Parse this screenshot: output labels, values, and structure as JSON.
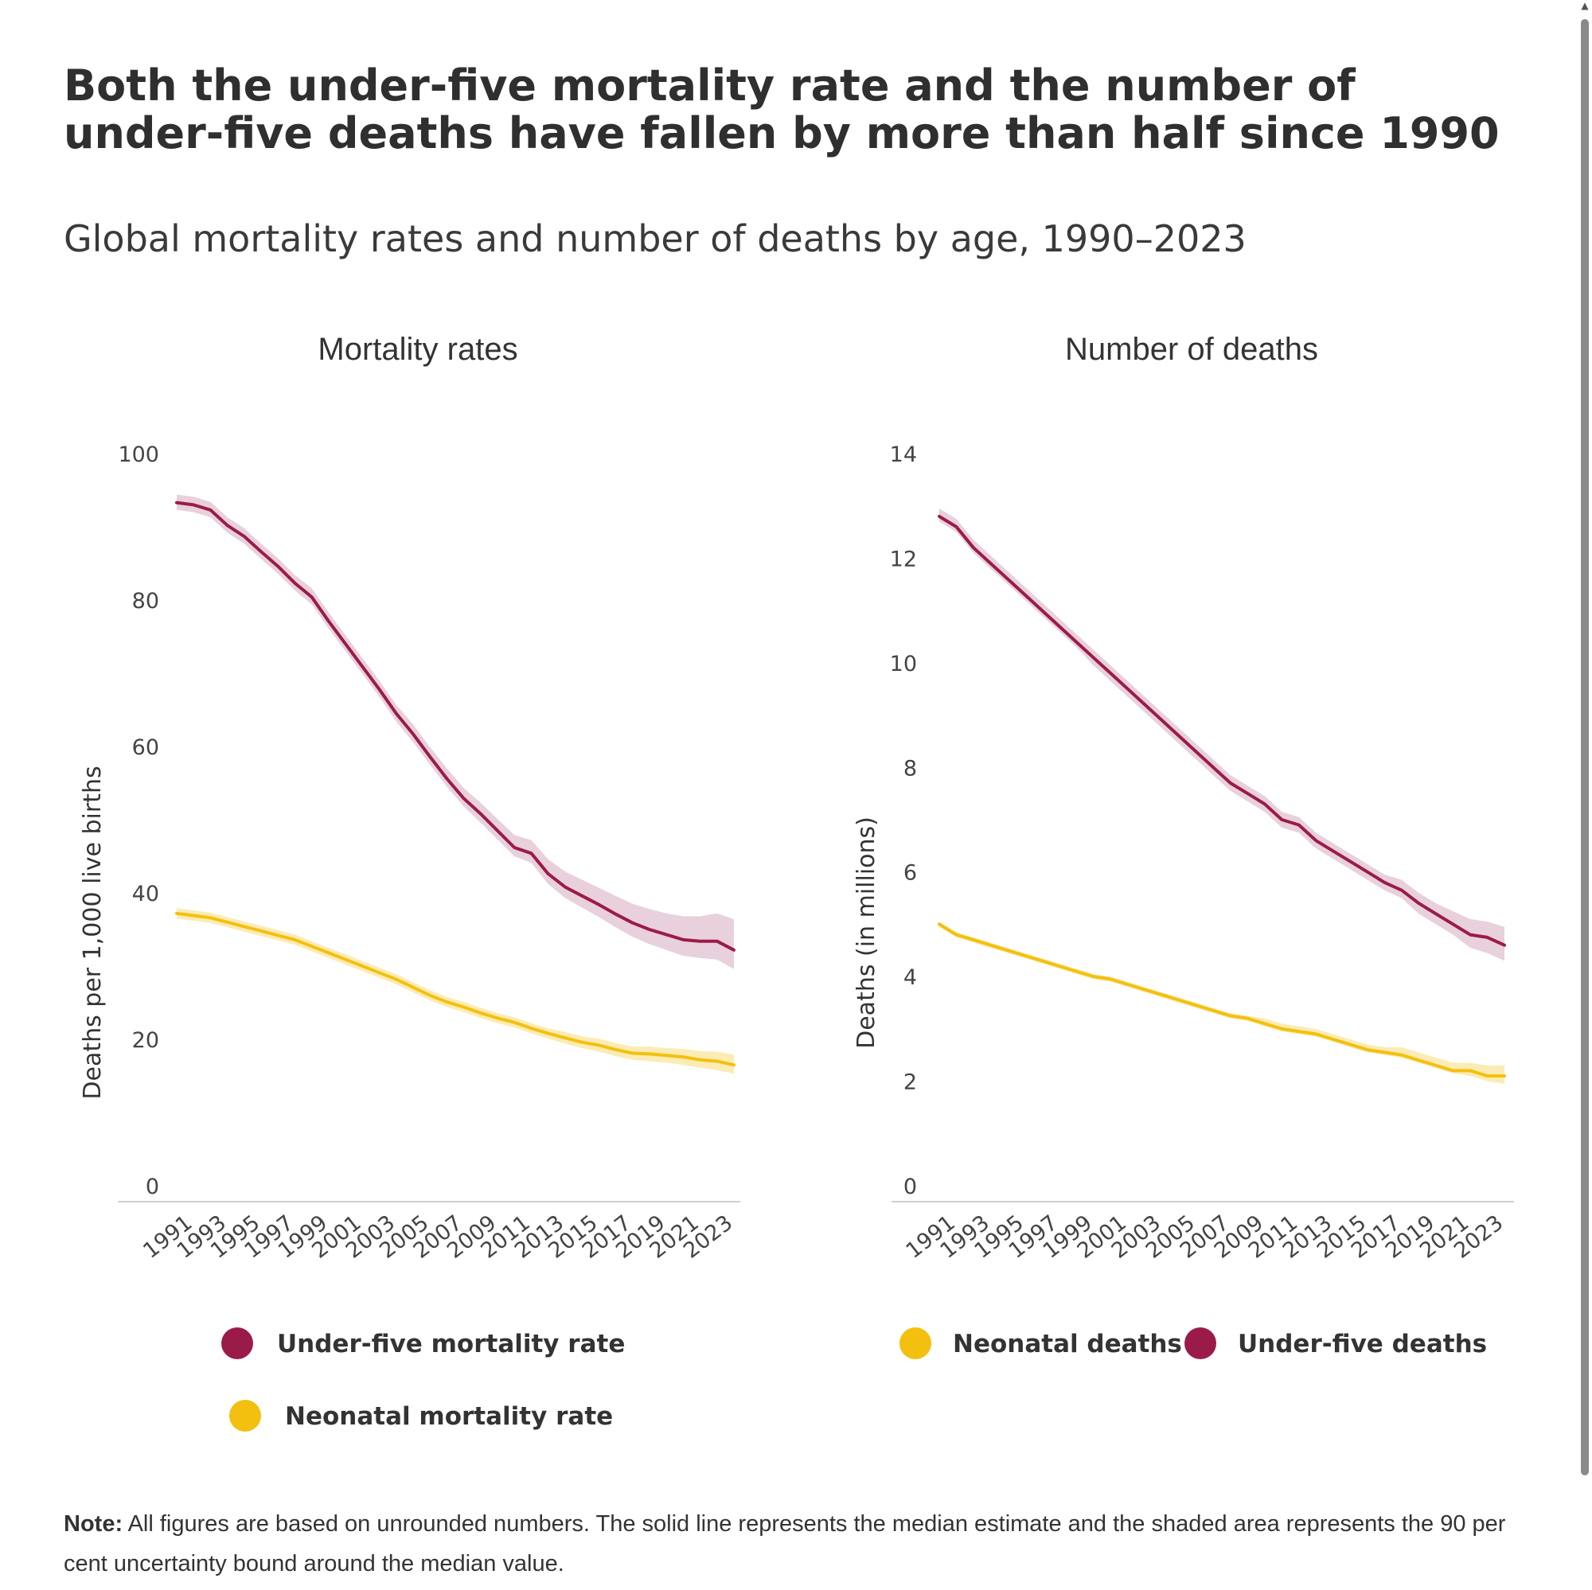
{
  "title": "Both the under-five mortality rate and the number of under-five deaths have fallen by more than half since 1990",
  "subtitle": "Global mortality rates and number of deaths by age, 1990–2023",
  "note": {
    "label": "Note:",
    "text": "All figures are based on unrounded numbers. The solid line represents the median estimate and the shaded area represents the 90 per cent uncertainty bound around the median value."
  },
  "colors": {
    "under_five": "#9b1b48",
    "neonatal": "#f4c00f",
    "under_five_band": "#e8d0dc",
    "neonatal_band": "#fbecb4"
  },
  "chart_data": [
    {
      "type": "line",
      "title": "Mortality rates",
      "xlabel": "",
      "ylabel": "Deaths per 1,000 live births",
      "ylim": [
        0,
        100
      ],
      "yticks": [
        "0",
        "20",
        "40",
        "60",
        "80",
        "100"
      ],
      "xlim": [
        1990,
        2023
      ],
      "xtick_labels": [
        "1991",
        "1993",
        "1995",
        "1997",
        "1999",
        "2001",
        "2003",
        "2005",
        "2007",
        "2009",
        "2011",
        "2013",
        "2015",
        "2017",
        "2019",
        "2021",
        "2023"
      ],
      "legend_position": "bottom",
      "series": [
        {
          "name": "Under-five mortality rate",
          "color": "#9b1b48",
          "band_color": "#e8d0dc",
          "x": [
            1990,
            1991,
            1992,
            1993,
            1994,
            1995,
            1996,
            1997,
            1998,
            1999,
            2000,
            2001,
            2002,
            2003,
            2004,
            2005,
            2006,
            2007,
            2008,
            2009,
            2010,
            2011,
            2012,
            2013,
            2014,
            2015,
            2016,
            2017,
            2018,
            2019,
            2020,
            2021,
            2022,
            2023
          ],
          "values": [
            93.3,
            93.0,
            92.3,
            90.2,
            88.7,
            86.6,
            84.6,
            82.3,
            80.4,
            77.1,
            74.0,
            70.9,
            67.8,
            64.5,
            61.7,
            58.6,
            55.6,
            52.9,
            50.8,
            48.5,
            46.2,
            45.4,
            42.6,
            40.8,
            39.6,
            38.4,
            37.1,
            35.9,
            35.0,
            34.3,
            33.6,
            33.4,
            33.4,
            32.2
          ],
          "lower": [
            92.3,
            92.0,
            91.3,
            89.2,
            87.7,
            85.6,
            83.6,
            81.3,
            79.4,
            76.1,
            73.0,
            69.9,
            66.8,
            63.4,
            60.6,
            57.5,
            54.5,
            51.8,
            49.6,
            47.3,
            45.0,
            44.1,
            41.2,
            39.3,
            38.0,
            36.7,
            35.3,
            34.0,
            33.0,
            32.2,
            31.4,
            31.1,
            30.9,
            29.6
          ],
          "upper": [
            94.4,
            94.1,
            93.4,
            91.3,
            89.8,
            87.7,
            85.7,
            83.4,
            81.6,
            78.3,
            75.2,
            72.1,
            69.0,
            65.7,
            63.0,
            59.9,
            57.0,
            54.3,
            52.3,
            50.1,
            47.9,
            47.2,
            44.6,
            42.9,
            41.8,
            40.7,
            39.6,
            38.5,
            37.8,
            37.2,
            36.8,
            36.8,
            37.2,
            36.4
          ]
        },
        {
          "name": "Neonatal mortality rate",
          "color": "#f4c00f",
          "band_color": "#fbecb4",
          "x": [
            1990,
            1991,
            1992,
            1993,
            1994,
            1995,
            1996,
            1997,
            1998,
            1999,
            2000,
            2001,
            2002,
            2003,
            2004,
            2005,
            2006,
            2007,
            2008,
            2009,
            2010,
            2011,
            2012,
            2013,
            2014,
            2015,
            2016,
            2017,
            2018,
            2019,
            2020,
            2021,
            2022,
            2023
          ],
          "values": [
            37.2,
            36.9,
            36.6,
            36.0,
            35.4,
            34.8,
            34.2,
            33.6,
            32.7,
            31.8,
            30.9,
            30.0,
            29.1,
            28.2,
            27.1,
            26.0,
            25.1,
            24.4,
            23.6,
            22.9,
            22.3,
            21.5,
            20.8,
            20.2,
            19.6,
            19.2,
            18.6,
            18.1,
            18.0,
            17.8,
            17.6,
            17.2,
            17.0,
            16.5
          ],
          "lower": [
            36.5,
            36.2,
            35.9,
            35.3,
            34.7,
            34.1,
            33.5,
            32.9,
            32.0,
            31.1,
            30.2,
            29.3,
            28.4,
            27.5,
            26.4,
            25.3,
            24.4,
            23.7,
            22.9,
            22.2,
            21.6,
            20.8,
            20.1,
            19.4,
            18.8,
            18.3,
            17.7,
            17.2,
            17.0,
            16.8,
            16.5,
            16.1,
            15.8,
            15.3
          ],
          "upper": [
            37.9,
            37.6,
            37.3,
            36.7,
            36.1,
            35.5,
            34.9,
            34.3,
            33.4,
            32.5,
            31.6,
            30.7,
            29.8,
            28.9,
            27.8,
            26.7,
            25.8,
            25.1,
            24.3,
            23.6,
            23.0,
            22.2,
            21.5,
            21.0,
            20.4,
            20.1,
            19.5,
            19.0,
            19.0,
            18.8,
            18.7,
            18.4,
            18.3,
            17.9
          ]
        }
      ]
    },
    {
      "type": "line",
      "title": "Number of deaths",
      "xlabel": "",
      "ylabel": "Deaths (in millions)",
      "ylim": [
        0,
        14
      ],
      "yticks": [
        "0",
        "2",
        "4",
        "6",
        "8",
        "10",
        "12",
        "14"
      ],
      "xlim": [
        1990,
        2023
      ],
      "xtick_labels": [
        "1991",
        "1993",
        "1995",
        "1997",
        "1999",
        "2001",
        "2003",
        "2005",
        "2007",
        "2009",
        "2011",
        "2013",
        "2015",
        "2017",
        "2019",
        "2021",
        "2023"
      ],
      "legend_position": "bottom",
      "series": [
        {
          "name": "Under-five deaths",
          "color": "#9b1b48",
          "band_color": "#e8d0dc",
          "x": [
            1990,
            1991,
            1992,
            1993,
            1994,
            1995,
            1996,
            1997,
            1998,
            1999,
            2000,
            2001,
            2002,
            2003,
            2004,
            2005,
            2006,
            2007,
            2008,
            2009,
            2010,
            2011,
            2012,
            2013,
            2014,
            2015,
            2016,
            2017,
            2018,
            2019,
            2020,
            2021,
            2022,
            2023
          ],
          "values": [
            12.8,
            12.6,
            12.2,
            11.9,
            11.6,
            11.3,
            11.0,
            10.7,
            10.4,
            10.1,
            9.8,
            9.5,
            9.2,
            8.9,
            8.6,
            8.3,
            8.0,
            7.7,
            7.5,
            7.3,
            7.0,
            6.9,
            6.6,
            6.4,
            6.2,
            6.0,
            5.8,
            5.65,
            5.4,
            5.2,
            5.0,
            4.8,
            4.75,
            4.6
          ],
          "lower": [
            12.7,
            12.5,
            12.1,
            11.8,
            11.5,
            11.2,
            10.9,
            10.6,
            10.3,
            9.95,
            9.65,
            9.35,
            9.05,
            8.75,
            8.45,
            8.15,
            7.85,
            7.55,
            7.35,
            7.15,
            6.85,
            6.75,
            6.45,
            6.25,
            6.05,
            5.85,
            5.65,
            5.5,
            5.2,
            5.0,
            4.8,
            4.55,
            4.45,
            4.3
          ],
          "upper": [
            12.95,
            12.75,
            12.35,
            12.05,
            11.75,
            11.45,
            11.15,
            10.85,
            10.55,
            10.25,
            9.95,
            9.65,
            9.35,
            9.05,
            8.75,
            8.45,
            8.15,
            7.85,
            7.65,
            7.45,
            7.15,
            7.05,
            6.75,
            6.55,
            6.35,
            6.15,
            5.95,
            5.85,
            5.6,
            5.4,
            5.25,
            5.1,
            5.05,
            4.95
          ]
        },
        {
          "name": "Neonatal deaths",
          "color": "#f4c00f",
          "band_color": "#fbecb4",
          "x": [
            1990,
            1991,
            1992,
            1993,
            1994,
            1995,
            1996,
            1997,
            1998,
            1999,
            2000,
            2001,
            2002,
            2003,
            2004,
            2005,
            2006,
            2007,
            2008,
            2009,
            2010,
            2011,
            2012,
            2013,
            2014,
            2015,
            2016,
            2017,
            2018,
            2019,
            2020,
            2021,
            2022,
            2023
          ],
          "values": [
            5.0,
            4.8,
            4.7,
            4.6,
            4.5,
            4.4,
            4.3,
            4.2,
            4.1,
            4.0,
            3.95,
            3.85,
            3.75,
            3.65,
            3.55,
            3.45,
            3.35,
            3.25,
            3.2,
            3.1,
            3.0,
            2.95,
            2.9,
            2.8,
            2.7,
            2.6,
            2.55,
            2.5,
            2.4,
            2.3,
            2.2,
            2.2,
            2.1,
            2.1
          ],
          "lower": [
            4.95,
            4.75,
            4.65,
            4.55,
            4.45,
            4.35,
            4.25,
            4.15,
            4.05,
            3.95,
            3.9,
            3.8,
            3.7,
            3.6,
            3.5,
            3.4,
            3.3,
            3.2,
            3.15,
            3.05,
            2.95,
            2.9,
            2.85,
            2.75,
            2.65,
            2.55,
            2.5,
            2.45,
            2.35,
            2.25,
            2.15,
            2.1,
            2.0,
            1.95
          ],
          "upper": [
            5.05,
            4.85,
            4.75,
            4.65,
            4.55,
            4.45,
            4.35,
            4.25,
            4.15,
            4.05,
            4.0,
            3.9,
            3.8,
            3.7,
            3.6,
            3.5,
            3.4,
            3.3,
            3.25,
            3.2,
            3.1,
            3.05,
            3.0,
            2.9,
            2.8,
            2.7,
            2.65,
            2.65,
            2.55,
            2.45,
            2.35,
            2.35,
            2.3,
            2.3
          ]
        }
      ]
    }
  ]
}
